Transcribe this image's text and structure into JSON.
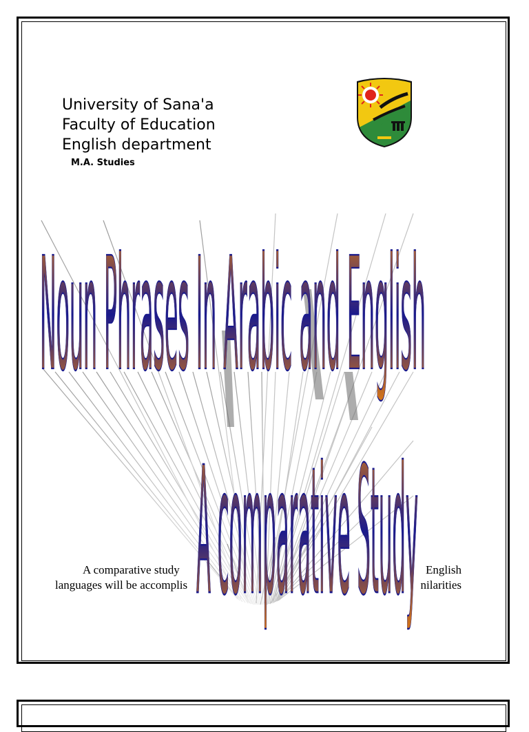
{
  "header": {
    "university": "University of Sana'a",
    "faculty": "Faculty of Education",
    "department": "English department",
    "program": "M.A. Studies"
  },
  "logo": {
    "icon": "university-seal-icon",
    "colors": {
      "shield": "#1f7a2e",
      "lower": "#2e8b3a",
      "upper": "#f2c811",
      "rim": "#111111",
      "sun": "#e0251b"
    }
  },
  "wordart": {
    "title": "Noun Phrases In Arabic and English",
    "subtitle": "A comparative Study",
    "colors": {
      "top": "#e07a10",
      "bottom": "#1a1a8c"
    }
  },
  "body": {
    "line1_left": "A comparative study",
    "line1_right": "English",
    "line2_left": "languages will be accomplis",
    "line2_right": "nilarities"
  }
}
